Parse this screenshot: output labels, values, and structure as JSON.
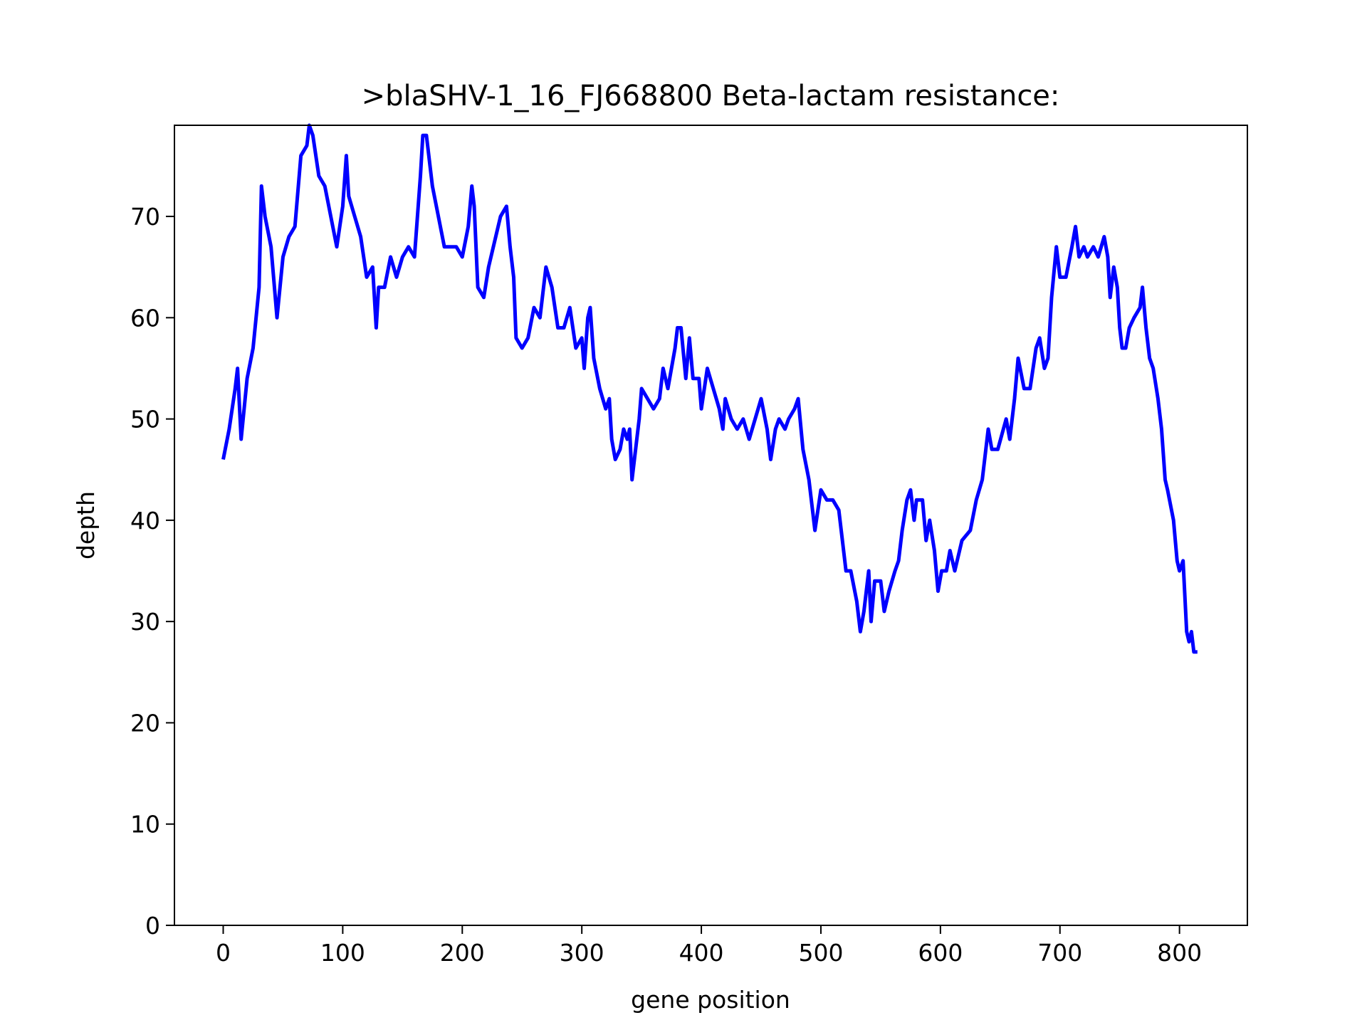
{
  "chart_data": {
    "type": "line",
    "title": ">blaSHV-1_16_FJ668800 Beta-lactam resistance:",
    "xlabel": "gene position",
    "ylabel": "depth",
    "xlim": [
      -40.8,
      856.8
    ],
    "ylim": [
      0,
      79
    ],
    "xticks": [
      0,
      100,
      200,
      300,
      400,
      500,
      600,
      700,
      800
    ],
    "yticks": [
      0,
      10,
      20,
      30,
      40,
      50,
      60,
      70
    ],
    "grid": false,
    "series": [
      {
        "color": "#0000ff",
        "x": [
          0,
          5,
          10,
          12,
          15,
          20,
          25,
          30,
          32,
          35,
          40,
          45,
          50,
          55,
          60,
          65,
          70,
          72,
          75,
          80,
          85,
          90,
          95,
          100,
          103,
          105,
          110,
          115,
          120,
          125,
          128,
          130,
          135,
          140,
          145,
          150,
          155,
          160,
          165,
          167,
          170,
          175,
          180,
          185,
          190,
          195,
          200,
          205,
          208,
          210,
          213,
          218,
          222,
          228,
          232,
          237,
          240,
          243,
          245,
          250,
          255,
          260,
          265,
          270,
          275,
          280,
          285,
          290,
          295,
          300,
          302,
          305,
          307,
          310,
          315,
          320,
          323,
          325,
          328,
          332,
          335,
          338,
          340,
          342,
          345,
          348,
          350,
          355,
          360,
          365,
          368,
          372,
          378,
          380,
          383,
          387,
          390,
          393,
          398,
          400,
          405,
          410,
          415,
          418,
          420,
          425,
          430,
          435,
          440,
          445,
          450,
          455,
          458,
          462,
          465,
          470,
          473,
          478,
          481,
          485,
          490,
          495,
          500,
          505,
          510,
          515,
          518,
          521,
          525,
          530,
          533,
          536,
          540,
          542,
          545,
          550,
          553,
          557,
          562,
          565,
          568,
          572,
          575,
          578,
          580,
          585,
          588,
          591,
          595,
          598,
          601,
          605,
          608,
          612,
          618,
          625,
          630,
          635,
          640,
          643,
          648,
          655,
          658,
          662,
          665,
          670,
          675,
          680,
          683,
          687,
          690,
          693,
          697,
          700,
          705,
          710,
          713,
          716,
          720,
          723,
          728,
          732,
          737,
          740,
          742,
          745,
          748,
          750,
          752,
          755,
          758,
          762,
          767,
          769,
          772,
          775,
          778,
          782,
          785,
          788,
          790,
          795,
          798,
          800,
          803,
          806,
          808,
          810,
          812,
          815
        ],
        "values": [
          46,
          49,
          53,
          55,
          48,
          54,
          57,
          63,
          73,
          70,
          67,
          60,
          66,
          68,
          69,
          76,
          77,
          79,
          78,
          74,
          73,
          70,
          67,
          71,
          76,
          72,
          70,
          68,
          64,
          65,
          59,
          63,
          63,
          66,
          64,
          66,
          67,
          66,
          74,
          78,
          78,
          73,
          70,
          67,
          67,
          67,
          66,
          69,
          73,
          71,
          63,
          62,
          65,
          68,
          70,
          71,
          67,
          64,
          58,
          57,
          58,
          61,
          60,
          65,
          63,
          59,
          59,
          61,
          57,
          58,
          55,
          60,
          61,
          56,
          53,
          51,
          52,
          48,
          46,
          47,
          49,
          48,
          49,
          44,
          47,
          50,
          53,
          52,
          51,
          52,
          55,
          53,
          57,
          59,
          59,
          54,
          58,
          54,
          54,
          51,
          55,
          53,
          51,
          49,
          52,
          50,
          49,
          50,
          48,
          50,
          52,
          49,
          46,
          49,
          50,
          49,
          50,
          51,
          52,
          47,
          44,
          39,
          43,
          42,
          42,
          41,
          38,
          35,
          35,
          32,
          29,
          31,
          35,
          30,
          34,
          34,
          31,
          33,
          35,
          36,
          39,
          42,
          43,
          40,
          42,
          42,
          38,
          40,
          37,
          33,
          35,
          35,
          37,
          35,
          38,
          39,
          42,
          44,
          49,
          47,
          47,
          50,
          48,
          52,
          56,
          53,
          53,
          57,
          58,
          55,
          56,
          62,
          67,
          64,
          64,
          67,
          69,
          66,
          67,
          66,
          67,
          66,
          68,
          66,
          62,
          65,
          63,
          59,
          57,
          57,
          59,
          60,
          61,
          63,
          59,
          56,
          55,
          52,
          49,
          44,
          43,
          40,
          36,
          35,
          36,
          29,
          28,
          29,
          27,
          27
        ]
      }
    ]
  }
}
